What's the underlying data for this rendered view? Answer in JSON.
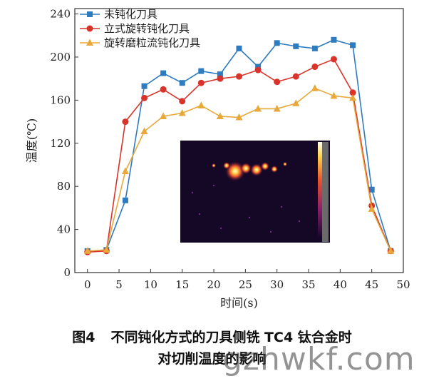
{
  "chart_data": {
    "type": "line",
    "title": "",
    "xlabel": "时间(s)",
    "ylabel": "温度(℃)",
    "xlim": [
      -2,
      50
    ],
    "ylim": [
      0,
      245
    ],
    "xticks": [
      0,
      5,
      10,
      15,
      20,
      25,
      30,
      35,
      40,
      45,
      50
    ],
    "yticks": [
      0,
      40,
      80,
      120,
      160,
      200,
      240
    ],
    "grid": false,
    "legend_position": "top-left",
    "x": [
      0,
      3,
      6,
      9,
      12,
      15,
      18,
      21,
      24,
      27,
      30,
      33,
      36,
      39,
      42,
      45,
      48
    ],
    "series": [
      {
        "name": "未钝化刀具",
        "marker": "square",
        "color": "#2e7bbf",
        "values": [
          20,
          21,
          67,
          173,
          185,
          176,
          187,
          184,
          208,
          191,
          213,
          210,
          208,
          216,
          211,
          77,
          20
        ]
      },
      {
        "name": "立式旋转钝化刀具",
        "marker": "circle",
        "color": "#d9342b",
        "values": [
          19,
          20,
          140,
          162,
          170,
          159,
          176,
          180,
          182,
          188,
          177,
          182,
          191,
          198,
          167,
          62,
          20
        ]
      },
      {
        "name": "旋转磨粒流钝化刀具",
        "marker": "triangle",
        "color": "#e8a83a",
        "values": [
          20,
          21,
          94,
          131,
          145,
          148,
          155,
          145,
          144,
          152,
          152,
          157,
          171,
          164,
          162,
          59,
          20
        ]
      }
    ],
    "inset": "thermal-camera-image"
  },
  "caption": {
    "figure_number": "图4",
    "line1": "不同钝化方式的刀具侧铣 TC4 钛合金时",
    "line2": "对切削温度的影响"
  },
  "watermark": "gzhwkf.com"
}
